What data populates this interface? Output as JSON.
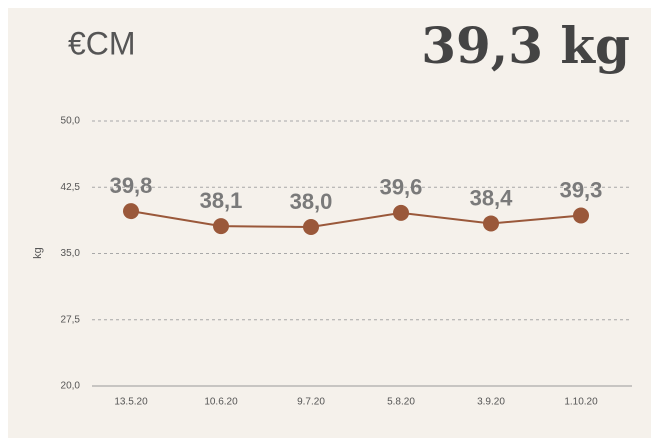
{
  "chart_data": {
    "type": "line",
    "title": "€CM",
    "headline": "39,3 kg",
    "y_label": "kg",
    "categories": [
      "13.5.20",
      "10.6.20",
      "9.7.20",
      "5.8.20",
      "3.9.20",
      "1.10.20"
    ],
    "values": [
      39.8,
      38.1,
      38.0,
      39.6,
      38.4,
      39.3
    ],
    "value_labels": [
      "39,8",
      "38,1",
      "38,0",
      "39,6",
      "38,4",
      "39,3"
    ],
    "color": "#9a583a",
    "ylim": [
      20,
      50
    ],
    "yticks": [
      {
        "value": 20,
        "label": "20,0"
      },
      {
        "value": 27.5,
        "label": "27,5"
      },
      {
        "value": 35,
        "label": "35,0"
      },
      {
        "value": 42.5,
        "label": "42,5"
      },
      {
        "value": 50,
        "label": "50,0"
      }
    ],
    "grid": true
  }
}
